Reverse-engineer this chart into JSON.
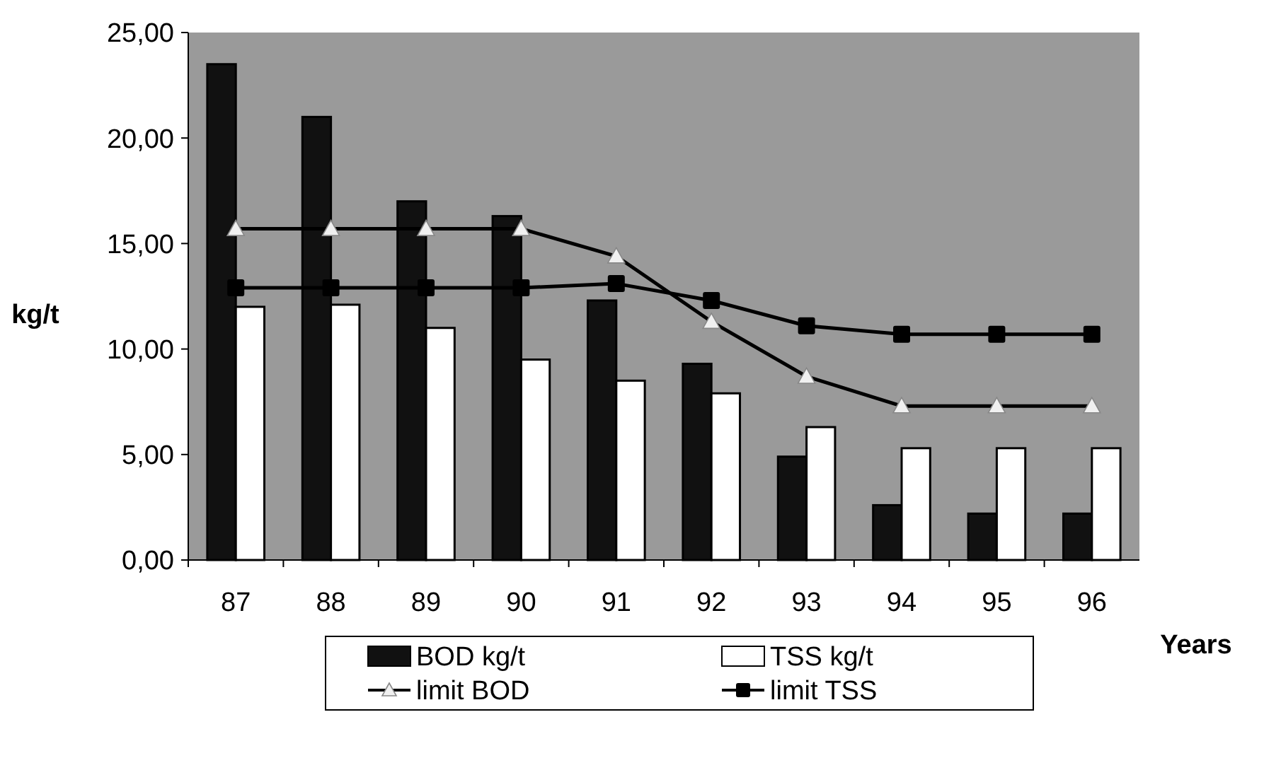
{
  "chart_data": {
    "type": "bar",
    "xlabel": "Years",
    "ylabel": "kg/t",
    "categories": [
      "87",
      "88",
      "89",
      "90",
      "91",
      "92",
      "93",
      "94",
      "95",
      "96"
    ],
    "series": [
      {
        "name": "BOD kg/t",
        "color": "#111111",
        "values": [
          23.5,
          21.0,
          17.0,
          16.3,
          12.3,
          9.3,
          4.9,
          2.6,
          2.2,
          2.2
        ]
      },
      {
        "name": "TSS kg/t",
        "color": "#ffffff",
        "values": [
          12.0,
          12.1,
          11.0,
          9.5,
          8.5,
          7.9,
          6.3,
          5.3,
          5.3,
          5.3
        ]
      },
      {
        "name": "limit BOD",
        "type": "line",
        "color": "#000000",
        "marker": "triangle",
        "values": [
          15.7,
          15.7,
          15.7,
          15.7,
          14.4,
          11.3,
          8.7,
          7.3,
          7.3,
          7.3
        ]
      },
      {
        "name": "limit TSS",
        "type": "line",
        "color": "#000000",
        "marker": "square",
        "values": [
          12.9,
          12.9,
          12.9,
          12.9,
          13.1,
          12.3,
          11.1,
          10.7,
          10.7,
          10.7
        ]
      }
    ],
    "ylim": [
      0,
      25
    ],
    "yticks": [
      {
        "value": 0,
        "label": "0,00"
      },
      {
        "value": 5,
        "label": "5,00"
      },
      {
        "value": 10,
        "label": "10,00"
      },
      {
        "value": 15,
        "label": "15,00"
      },
      {
        "value": 20,
        "label": "20,00"
      },
      {
        "value": 25,
        "label": "25,00"
      }
    ],
    "grid": false,
    "legend": "bottom"
  }
}
